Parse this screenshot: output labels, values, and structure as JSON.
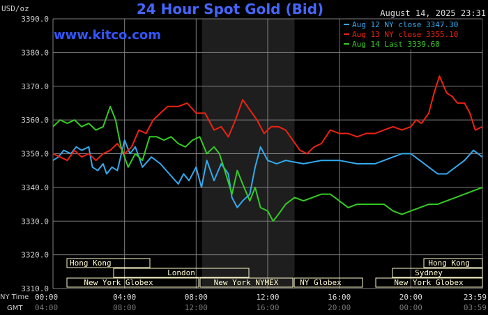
{
  "header": {
    "unit_label": "USD/oz",
    "title": "24 Hour Spot Gold (Bid)",
    "timestamp": "August 14, 2025 23:31",
    "watermark": "www.kitco.com"
  },
  "colors": {
    "background": "#000000",
    "grid": "#808080",
    "title": "#4466ff",
    "watermark": "#3355ff",
    "text": "#cccccc",
    "session_fill": "#fffacd",
    "session_text": "#000000",
    "nyse_shade": "#1e1e1e"
  },
  "sessions": {
    "row1": [
      {
        "label": "Hong Kong"
      },
      {
        "label": "Hong Kong"
      }
    ],
    "row2": [
      {
        "label": "London"
      },
      {
        "label": "Sydney"
      }
    ],
    "row3": [
      {
        "label": "New York Globex"
      },
      {
        "label": "New York NYMEX"
      },
      {
        "label": "NY Globex"
      },
      {
        "label": "New York Globex"
      }
    ]
  },
  "footer": {
    "ny_time_label": "NY Time",
    "gmt_label": "GMT"
  },
  "chart_data": {
    "type": "line",
    "ylim": [
      3310,
      3390
    ],
    "yticks": [
      3310,
      3320,
      3330,
      3340,
      3350,
      3360,
      3370,
      3380,
      3390
    ],
    "ytick_labels": [
      "3310.0",
      "3320.0",
      "3330.0",
      "3340.0",
      "3350.0",
      "3360.0",
      "3370.0",
      "3380.0",
      "3390.0"
    ],
    "xlim": [
      0,
      24
    ],
    "xticks": [
      0,
      4,
      8,
      12,
      16,
      20,
      24
    ],
    "xtick_labels_ny": [
      "00:00",
      "04:00",
      "08:00",
      "12:00",
      "16:00",
      "20:00",
      "23:59"
    ],
    "xtick_labels_gmt": [
      "04:00",
      "08:00",
      "12:00",
      "16:00",
      "20:00",
      "00:00",
      "03:59"
    ],
    "grid": true,
    "legend_position": "top-right",
    "series": [
      {
        "name": "Aug 12 NY close 3347.30",
        "color": "#33aaee",
        "x": [
          0,
          0.3,
          0.6,
          1,
          1.3,
          1.6,
          2,
          2.2,
          2.5,
          2.8,
          3,
          3.3,
          3.6,
          4,
          4.3,
          4.6,
          5,
          5.5,
          6,
          6.5,
          7,
          7.3,
          7.6,
          8,
          8.3,
          8.6,
          9,
          9.4,
          9.8,
          10,
          10.3,
          10.6,
          11,
          11.3,
          11.6,
          12,
          12.5,
          13,
          14,
          15,
          16,
          17,
          18,
          18.5,
          19,
          19.5,
          20,
          20.5,
          21,
          21.5,
          22,
          22.5,
          23,
          23.5,
          24
        ],
        "values": [
          3348,
          3349,
          3351,
          3350,
          3352,
          3351,
          3352,
          3346,
          3345,
          3347,
          3344,
          3346,
          3345,
          3354,
          3350,
          3352,
          3346,
          3349,
          3347,
          3344,
          3341,
          3344,
          3342,
          3346,
          3340,
          3348,
          3342,
          3347,
          3344,
          3337,
          3334,
          3336,
          3338,
          3346,
          3352,
          3348,
          3347,
          3348,
          3347,
          3348,
          3348,
          3347,
          3347,
          3348,
          3349,
          3350,
          3350,
          3348,
          3346,
          3344,
          3344,
          3346,
          3348,
          3351,
          3349
        ]
      },
      {
        "name": "Aug 13 NY close 3355.10",
        "color": "#ee2211",
        "x": [
          0,
          0.4,
          0.8,
          1.2,
          1.6,
          2,
          2.4,
          2.8,
          3.2,
          3.6,
          4,
          4.4,
          4.8,
          5.2,
          5.6,
          6,
          6.4,
          7,
          7.5,
          8,
          8.5,
          9,
          9.4,
          9.8,
          10.2,
          10.6,
          11,
          11.4,
          11.8,
          12.2,
          12.6,
          13,
          13.4,
          13.8,
          14.2,
          14.6,
          15,
          15.5,
          16,
          16.5,
          17,
          17.5,
          18,
          18.5,
          19,
          19.5,
          20,
          20.3,
          20.6,
          21,
          21.3,
          21.6,
          22,
          22.3,
          22.6,
          23,
          23.3,
          23.6,
          24
        ],
        "values": [
          3350,
          3349,
          3348,
          3351,
          3349,
          3350,
          3348,
          3350,
          3351,
          3353,
          3350,
          3352,
          3357,
          3356,
          3360,
          3362,
          3364,
          3364,
          3365,
          3362,
          3362,
          3357,
          3358,
          3355,
          3360,
          3366,
          3363,
          3360,
          3356,
          3358,
          3358,
          3357,
          3354,
          3351,
          3350,
          3352,
          3353,
          3357,
          3356,
          3356,
          3355,
          3356,
          3356,
          3357,
          3358,
          3357,
          3358,
          3360,
          3359,
          3362,
          3368,
          3373,
          3368,
          3367,
          3365,
          3365,
          3362,
          3357,
          3358
        ]
      },
      {
        "name": "Aug 14 Last 3339.60",
        "color": "#33cc22",
        "x": [
          0,
          0.4,
          0.8,
          1.2,
          1.6,
          2,
          2.4,
          2.8,
          3.2,
          3.5,
          3.8,
          4.2,
          4.6,
          5,
          5.4,
          5.8,
          6.2,
          6.6,
          7,
          7.4,
          7.8,
          8.2,
          8.6,
          9,
          9.3,
          9.6,
          10,
          10.3,
          10.6,
          11,
          11.3,
          11.6,
          12,
          12.3,
          12.6,
          13,
          13.5,
          14,
          14.5,
          15,
          15.5,
          16,
          16.5,
          17,
          17.5,
          18,
          18.5,
          19,
          19.5,
          20,
          20.5,
          21,
          21.5,
          22,
          22.5,
          23,
          23.5,
          24
        ],
        "values": [
          3358,
          3360,
          3359,
          3360,
          3358,
          3359,
          3357,
          3358,
          3364,
          3360,
          3352,
          3346,
          3350,
          3348,
          3355,
          3355,
          3354,
          3355,
          3353,
          3352,
          3354,
          3355,
          3350,
          3352,
          3350,
          3345,
          3338,
          3345,
          3341,
          3336,
          3340,
          3334,
          3333,
          3330,
          3332,
          3335,
          3337,
          3336,
          3337,
          3338,
          3338,
          3336,
          3334,
          3335,
          3335,
          3335,
          3335,
          3333,
          3332,
          3333,
          3334,
          3335,
          3335,
          3336,
          3337,
          3338,
          3339,
          3340
        ]
      }
    ]
  }
}
